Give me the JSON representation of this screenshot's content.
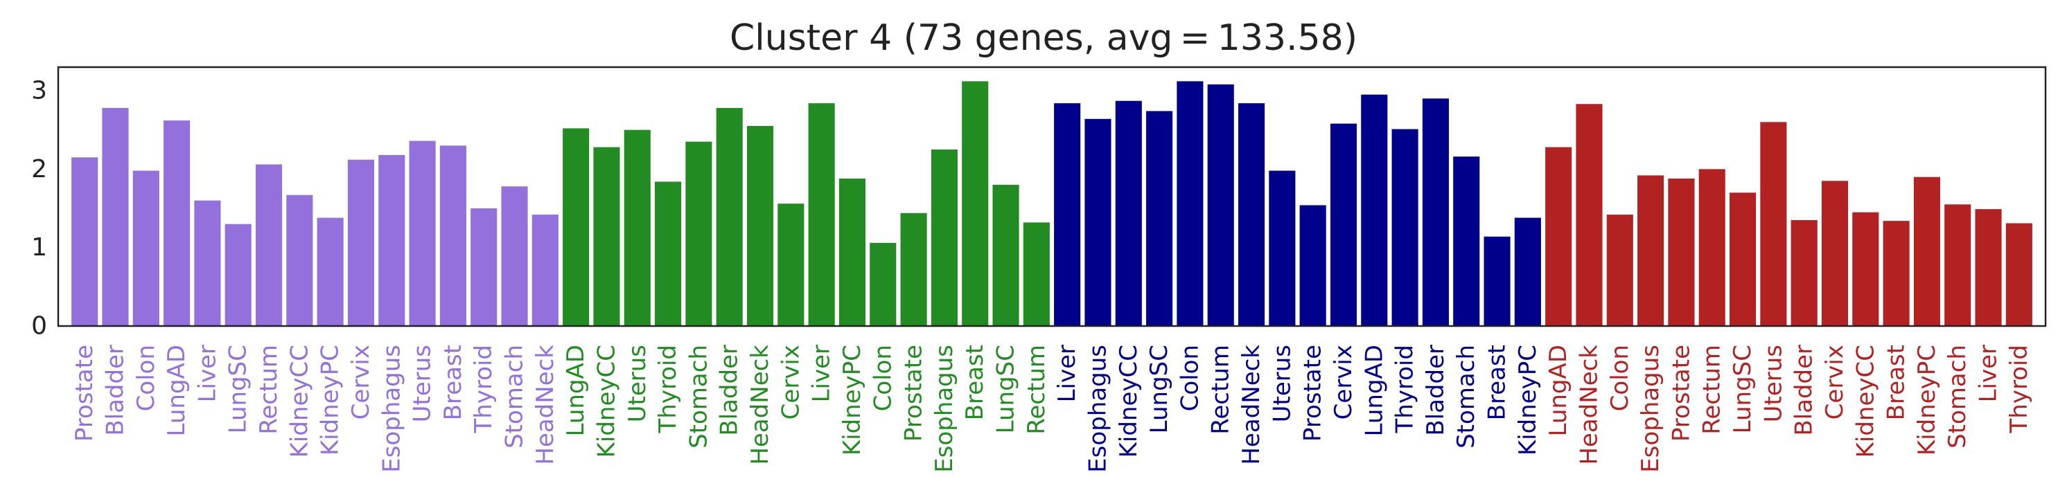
{
  "chart_data": {
    "type": "bar",
    "title": "Cluster 4 (73 genes,  avg = 133.58)",
    "xlabel": "",
    "ylabel": "",
    "ylim": [
      0,
      3.3
    ],
    "yticks": [
      "0",
      "1",
      "2",
      "3"
    ],
    "grid": false,
    "legend": "none",
    "groups": [
      {
        "color": "#9370DB",
        "start": 0,
        "count": 16
      },
      {
        "color": "#228B22",
        "start": 16,
        "count": 16
      },
      {
        "color": "#00008B",
        "start": 32,
        "count": 16
      },
      {
        "color": "#B22222",
        "start": 48,
        "count": 16
      }
    ],
    "categories": [
      "Prostate",
      "Bladder",
      "Colon",
      "LungAD",
      "Liver",
      "LungSC",
      "Rectum",
      "KidneyCC",
      "KidneyPC",
      "Cervix",
      "Esophagus",
      "Uterus",
      "Breast",
      "Thyroid",
      "Stomach",
      "HeadNeck",
      "LungAD",
      "KidneyCC",
      "Uterus",
      "Thyroid",
      "Stomach",
      "Bladder",
      "HeadNeck",
      "Cervix",
      "Liver",
      "KidneyPC",
      "Colon",
      "Prostate",
      "Esophagus",
      "Breast",
      "LungSC",
      "Rectum",
      "Liver",
      "Esophagus",
      "KidneyCC",
      "LungSC",
      "Colon",
      "Rectum",
      "HeadNeck",
      "Uterus",
      "Prostate",
      "Cervix",
      "LungAD",
      "Thyroid",
      "Bladder",
      "Stomach",
      "Breast",
      "KidneyPC",
      "LungAD",
      "HeadNeck",
      "Colon",
      "Esophagus",
      "Prostate",
      "Rectum",
      "LungSC",
      "Uterus",
      "Bladder",
      "Cervix",
      "KidneyCC",
      "Breast",
      "KidneyPC",
      "Stomach",
      "Liver",
      "Thyroid"
    ],
    "values": [
      2.15,
      2.78,
      1.98,
      2.62,
      1.6,
      1.3,
      2.06,
      1.67,
      1.38,
      2.12,
      2.18,
      2.36,
      2.3,
      1.5,
      1.78,
      1.42,
      2.52,
      2.28,
      2.5,
      1.84,
      2.35,
      2.78,
      2.55,
      1.56,
      2.84,
      1.88,
      1.06,
      1.44,
      2.25,
      3.12,
      1.8,
      1.32,
      2.84,
      2.64,
      2.87,
      2.74,
      3.12,
      3.08,
      2.84,
      1.98,
      1.54,
      2.58,
      2.95,
      2.51,
      2.9,
      2.16,
      1.14,
      1.38,
      2.28,
      2.83,
      1.42,
      1.92,
      1.88,
      2.0,
      1.7,
      2.6,
      1.35,
      1.85,
      1.45,
      1.34,
      1.9,
      1.55,
      1.49,
      1.31
    ]
  }
}
